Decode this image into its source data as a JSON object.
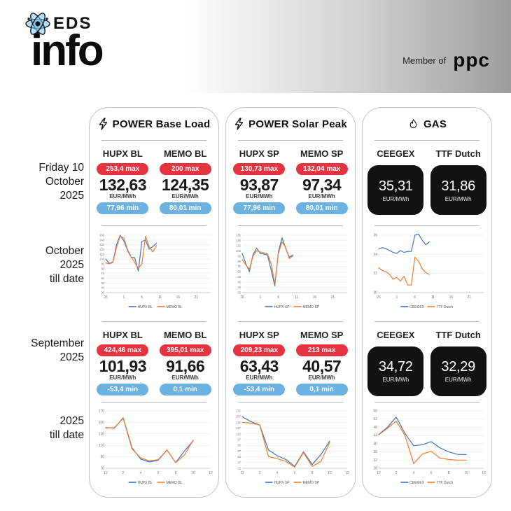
{
  "header": {
    "logo": {
      "brand_top": "EDS",
      "brand_bottom": "info"
    },
    "member_of_label": "Member of",
    "member_brand": "ppc"
  },
  "row_labels": {
    "day": "Friday 10\nOctober\n2025",
    "october": "October\n2025\ntill date",
    "september": "September\n2025",
    "ytd": "2025\ntill date"
  },
  "colors": {
    "max_badge": "#e63340",
    "min_badge": "#6cb2e0",
    "series_blue": "#4472c4",
    "series_orange": "#ed7d31",
    "gas_box": "#121212"
  },
  "panels": [
    {
      "title": "POWER Base Load",
      "day": {
        "columns": [
          {
            "label": "HUPX BL",
            "max": "253,4 max",
            "value": "132,63",
            "unit": "EUR/MWh",
            "min": "77,96 min"
          },
          {
            "label": "MEMO BL",
            "max": "200 max",
            "value": "124,35",
            "unit": "EUR/MWh",
            "min": "80,01 min"
          }
        ]
      },
      "september": {
        "columns": [
          {
            "label": "HUPX BL",
            "max": "424,46 max",
            "value": "101,93",
            "unit": "EUR/MWh",
            "min": "-53,4 min"
          },
          {
            "label": "MEMO BL",
            "max": "395,01 max",
            "value": "91,66",
            "unit": "EUR/MWh",
            "min": "0,1 min"
          }
        ]
      }
    },
    {
      "title": "POWER Solar Peak",
      "day": {
        "columns": [
          {
            "label": "HUPX SP",
            "max": "130,73 max",
            "value": "93,87",
            "unit": "EUR/MWh",
            "min": "77,96 min"
          },
          {
            "label": "MEMO SP",
            "max": "132,04 max",
            "value": "97,34",
            "unit": "EUR/MWh",
            "min": "80,01 min"
          }
        ]
      },
      "september": {
        "columns": [
          {
            "label": "HUPX SP",
            "max": "209,23 max",
            "value": "63,43",
            "unit": "EUR/MWh",
            "min": "-53,4 min"
          },
          {
            "label": "MEMO SP",
            "max": "213 max",
            "value": "40,57",
            "unit": "EUR/MWh",
            "min": "0,1 min"
          }
        ]
      }
    },
    {
      "title": "GAS",
      "day": {
        "columns": [
          {
            "label": "CEEGEX",
            "value": "35,31",
            "unit": "EUR/MWh"
          },
          {
            "label": "TTF Dutch",
            "value": "31,86",
            "unit": "EUR/MWh"
          }
        ]
      },
      "september": {
        "columns": [
          {
            "label": "CEEGEX",
            "value": "34,72",
            "unit": "EUR/MWh"
          },
          {
            "label": "TTF Dutch",
            "value": "32,29",
            "unit": "EUR/MWh"
          }
        ]
      }
    }
  ],
  "chart_data": [
    {
      "id": "power-base-load-october-till-date",
      "type": "line",
      "title": "POWER Base Load — October 2025 till date (daily EUR/MWh)",
      "x_tick_labels": [
        "26",
        "1",
        "6",
        "11",
        "16",
        "21"
      ],
      "x_tick_positions": [
        0,
        5,
        10,
        15,
        20,
        25
      ],
      "x_max": 29,
      "y_ticks": [
        30,
        40,
        50,
        60,
        70,
        80,
        90,
        100,
        110,
        120,
        130,
        140,
        150
      ],
      "series": [
        {
          "name": "HUPX BL",
          "color": "#4472c4",
          "values": [
            100,
            91,
            94,
            130,
            150,
            138,
            119,
            104,
            103,
            75,
            137,
            140,
            121,
            126,
            133
          ]
        },
        {
          "name": "MEMO BL",
          "color": "#ed7d31",
          "values": [
            92,
            90,
            93,
            125,
            148,
            144,
            121,
            105,
            93,
            81,
            90,
            148,
            126,
            115,
            128
          ]
        }
      ]
    },
    {
      "id": "power-base-load-2025-till-date",
      "type": "line",
      "title": "POWER Base Load — 2025 till date (monthly EUR/MWh)",
      "x_tick_labels": [
        "12",
        "2",
        "4",
        "6",
        "8",
        "10",
        "12"
      ],
      "x_tick_positions": [
        0,
        2,
        4,
        6,
        8,
        10,
        12
      ],
      "x_max": 12,
      "y_ticks": [
        70,
        90,
        110,
        130,
        150,
        170
      ],
      "series": [
        {
          "name": "HUPX BL",
          "color": "#4472c4",
          "values": [
            141,
            140,
            158,
            106,
            86,
            81,
            84,
            102,
            80,
            100,
            118
          ]
        },
        {
          "name": "MEMO BL",
          "color": "#ed7d31",
          "values": [
            140,
            141,
            157,
            104,
            88,
            83,
            85,
            102,
            80,
            93,
            119
          ]
        }
      ]
    },
    {
      "id": "power-solar-peak-october-till-date",
      "type": "line",
      "title": "POWER Solar Peak — October 2025 till date (daily EUR/MWh)",
      "x_tick_labels": [
        "26",
        "1",
        "6",
        "11",
        "16",
        "21"
      ],
      "x_tick_positions": [
        0,
        5,
        10,
        15,
        20,
        25
      ],
      "x_max": 29,
      "y_ticks": [
        25,
        35,
        45,
        55,
        65,
        75,
        85,
        95,
        105,
        115,
        125,
        135
      ],
      "series": [
        {
          "name": "HUPX SP",
          "color": "#4472c4",
          "values": [
            100,
            80,
            65,
            98,
            110,
            100,
            99,
            97,
            68,
            38,
            103,
            130,
            110,
            93,
            97
          ]
        },
        {
          "name": "MEMO SP",
          "color": "#ed7d31",
          "values": [
            88,
            78,
            70,
            95,
            105,
            103,
            101,
            99,
            80,
            42,
            100,
            122,
            112,
            90,
            95
          ]
        }
      ]
    },
    {
      "id": "power-solar-peak-2025-till-date",
      "type": "line",
      "title": "POWER Solar Peak — 2025 till date (monthly EUR/MWh)",
      "x_tick_labels": [
        "12",
        "2",
        "4",
        "6",
        "8",
        "10",
        "12"
      ],
      "x_tick_positions": [
        0,
        2,
        4,
        6,
        8,
        10,
        12
      ],
      "x_max": 12,
      "y_ticks": [
        22,
        37,
        52,
        67,
        82,
        97,
        112,
        127,
        142,
        157,
        172
      ],
      "series": [
        {
          "name": "HUPX SP",
          "color": "#4472c4",
          "values": [
            157,
            144,
            135,
            70,
            55,
            45,
            27,
            65,
            32,
            58,
            93
          ]
        },
        {
          "name": "MEMO SP",
          "color": "#ed7d31",
          "values": [
            142,
            140,
            135,
            53,
            47,
            40,
            25,
            63,
            27,
            40,
            90
          ]
        }
      ]
    },
    {
      "id": "gas-october-till-date",
      "type": "line",
      "title": "GAS — October 2025 till date (daily EUR/MWh)",
      "x_tick_labels": [
        "26",
        "1",
        "6",
        "11",
        "16",
        "21"
      ],
      "x_tick_positions": [
        0,
        5,
        10,
        15,
        20,
        25
      ],
      "x_max": 29,
      "y_ticks": [
        30,
        32,
        34,
        36
      ],
      "series": [
        {
          "name": "CEEGEX",
          "color": "#4472c4",
          "values": [
            34.6,
            34.7,
            34.6,
            34.4,
            34.2,
            34.1,
            34.4,
            34.2,
            34.3,
            34.3,
            36.0,
            36.1,
            35.5,
            35.0,
            35.3
          ]
        },
        {
          "name": "TTF Dutch",
          "color": "#ed7d31",
          "values": [
            32.6,
            32.3,
            32.2,
            31.9,
            31.4,
            31.6,
            31.2,
            31.7,
            30.8,
            30.8,
            33.7,
            33.3,
            32.5,
            32.1,
            31.9
          ]
        }
      ]
    },
    {
      "id": "gas-2025-till-date",
      "type": "line",
      "title": "GAS — 2025 till date (monthly EUR/MWh)",
      "x_tick_labels": [
        "12",
        "2",
        "4",
        "6",
        "8",
        "10",
        "12"
      ],
      "x_tick_positions": [
        0,
        2,
        4,
        6,
        8,
        10,
        12
      ],
      "x_max": 12,
      "y_ticks": [
        28,
        32,
        36,
        40,
        44,
        48,
        52,
        56
      ],
      "series": [
        {
          "name": "CEEGEX",
          "color": "#4472c4",
          "values": [
            44.5,
            48,
            53,
            45,
            39,
            39.5,
            41,
            38,
            36,
            34.8,
            34.7
          ]
        },
        {
          "name": "TTF Dutch",
          "color": "#ed7d31",
          "values": [
            44.3,
            47.5,
            51,
            44,
            30.3,
            35,
            36.3,
            33,
            32.3,
            32,
            32
          ]
        }
      ]
    }
  ]
}
